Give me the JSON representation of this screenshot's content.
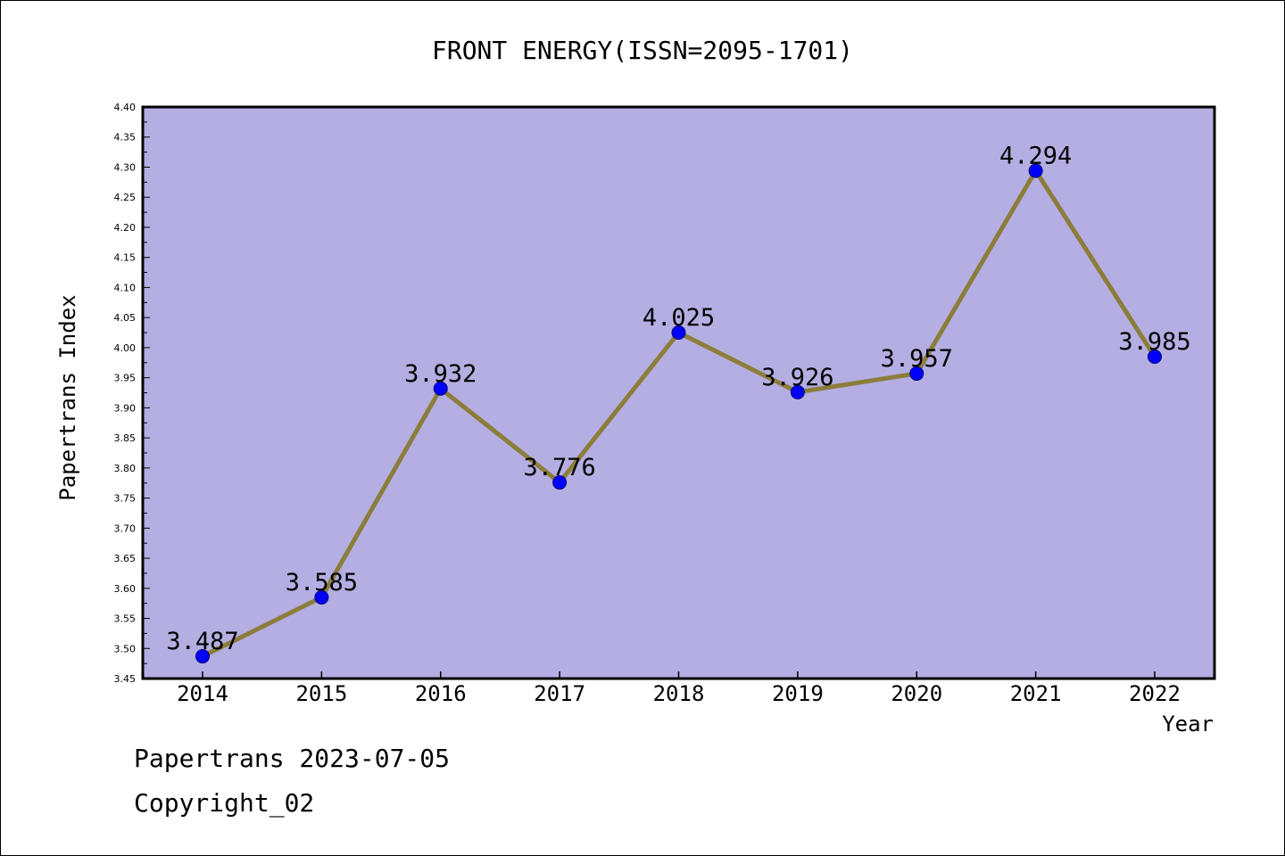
{
  "chart_data": {
    "type": "line",
    "title": "FRONT ENERGY(ISSN=2095-1701)",
    "xlabel": "Year",
    "ylabel": "Papertrans Index",
    "categories": [
      "2014",
      "2015",
      "2016",
      "2017",
      "2018",
      "2019",
      "2020",
      "2021",
      "2022"
    ],
    "values": [
      3.487,
      3.585,
      3.932,
      3.776,
      4.025,
      3.926,
      3.957,
      4.294,
      3.985
    ],
    "data_labels": [
      "3.487",
      "3.585",
      "3.932",
      "3.776",
      "4.025",
      "3.926",
      "3.957",
      "4.294",
      "3.985"
    ],
    "ylim": [
      3.45,
      4.4
    ],
    "y_ticks": [
      "3.45",
      "3.50",
      "3.55",
      "3.60",
      "3.65",
      "3.70",
      "3.75",
      "3.80",
      "3.85",
      "3.90",
      "3.95",
      "4.00",
      "4.05",
      "4.10",
      "4.15",
      "4.20",
      "4.25",
      "4.30",
      "4.35",
      "4.40"
    ],
    "grid": false,
    "legend": "none",
    "colors": {
      "plot_background": "#b4aee2",
      "line": "#8b7d3a",
      "marker": "#0000ff",
      "axis": "#000000"
    }
  },
  "footer": {
    "line1": "Papertrans 2023-07-05",
    "line2": "Copyright_02"
  }
}
